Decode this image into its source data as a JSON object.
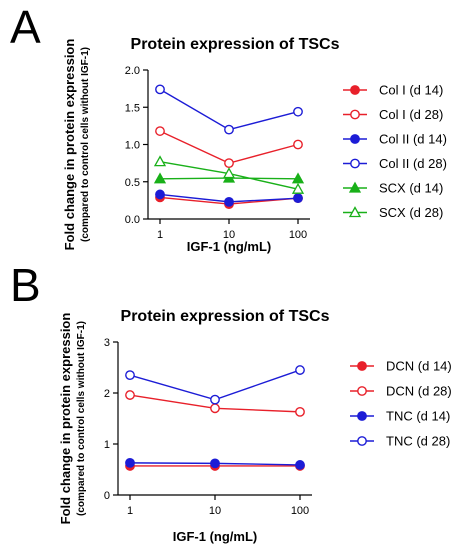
{
  "panels": [
    {
      "letter": "A",
      "chart_data": {
        "type": "line",
        "title": "Protein expression of TSCs",
        "xlabel": "IGF-1 (ng/mL)",
        "ylabel": "Fold change in protein expression",
        "ylabel_sub": "(compared to control cells without IGF-1)",
        "x_scale": "log",
        "categories": [
          "1",
          "10",
          "100"
        ],
        "ylim": [
          0,
          2.0
        ],
        "yticks": [
          "0.0",
          "0.5",
          "1.0",
          "1.5",
          "2.0"
        ],
        "legend_position": "right",
        "series": [
          {
            "name": "Col I (d 14)",
            "values": [
              0.29,
              0.2,
              0.28
            ],
            "color": "#e8202a",
            "marker": "circle",
            "filled": true
          },
          {
            "name": "Col I (d 28)",
            "values": [
              1.18,
              0.75,
              1.0
            ],
            "color": "#e8202a",
            "marker": "circle",
            "filled": false
          },
          {
            "name": "Col II (d 14)",
            "values": [
              0.33,
              0.23,
              0.28
            ],
            "color": "#1c1cd6",
            "marker": "circle",
            "filled": true
          },
          {
            "name": "Col II (d 28)",
            "values": [
              1.74,
              1.2,
              1.44
            ],
            "color": "#1c1cd6",
            "marker": "circle",
            "filled": false
          },
          {
            "name": "SCX (d 14)",
            "values": [
              0.54,
              0.55,
              0.54
            ],
            "color": "#19b019",
            "marker": "triangle",
            "filled": true
          },
          {
            "name": "SCX (d 28)",
            "values": [
              0.77,
              0.61,
              0.4
            ],
            "color": "#19b019",
            "marker": "triangle",
            "filled": false
          }
        ]
      }
    },
    {
      "letter": "B",
      "chart_data": {
        "type": "line",
        "title": "Protein expression of TSCs",
        "xlabel": "IGF-1 (ng/mL)",
        "ylabel": "Fold change in protein expression",
        "ylabel_sub": "(compared to control cells without IGF-1)",
        "x_scale": "log",
        "categories": [
          "1",
          "10",
          "100"
        ],
        "ylim": [
          0,
          3
        ],
        "yticks": [
          "0",
          "1",
          "2",
          "3"
        ],
        "legend_position": "right",
        "series": [
          {
            "name": "DCN (d 14)",
            "values": [
              0.57,
              0.57,
              0.57
            ],
            "color": "#e8202a",
            "marker": "circle",
            "filled": true
          },
          {
            "name": "DCN (d 28)",
            "values": [
              1.96,
              1.7,
              1.63
            ],
            "color": "#e8202a",
            "marker": "circle",
            "filled": false
          },
          {
            "name": "TNC (d 14)",
            "values": [
              0.63,
              0.62,
              0.59
            ],
            "color": "#1c1cd6",
            "marker": "circle",
            "filled": true
          },
          {
            "name": "TNC (d 28)",
            "values": [
              2.35,
              1.87,
              2.45
            ],
            "color": "#1c1cd6",
            "marker": "circle",
            "filled": false
          }
        ]
      }
    }
  ]
}
